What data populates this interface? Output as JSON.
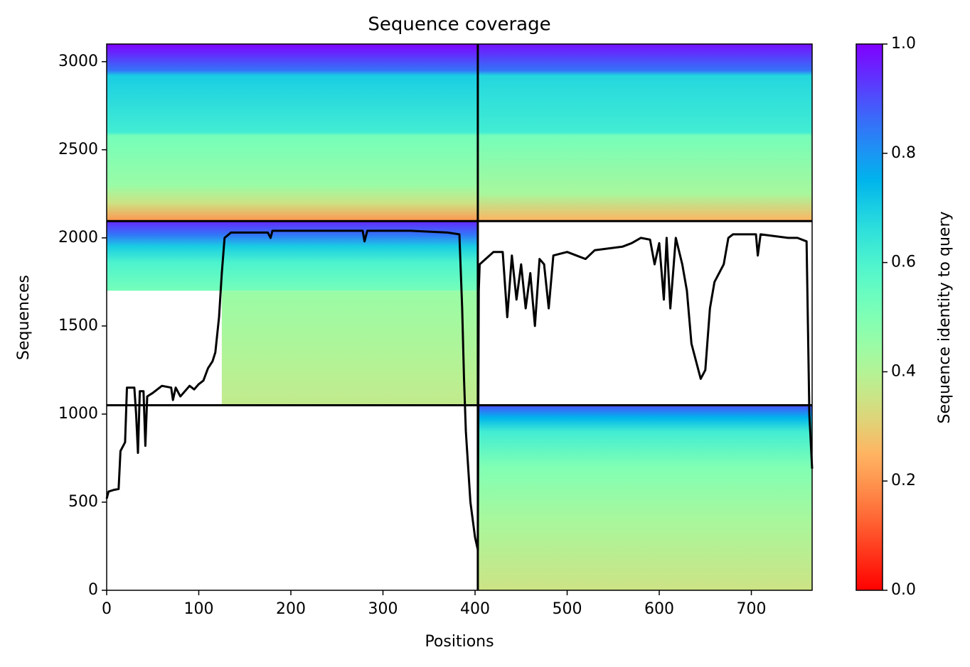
{
  "chart_data": {
    "type": "coverage",
    "title": "Sequence coverage",
    "xlabel": "Positions",
    "ylabel": "Sequences",
    "colorbar_label": "Sequence identity to query",
    "xlim": [
      0,
      766
    ],
    "ylim": [
      0,
      3100
    ],
    "xticks": [
      0,
      100,
      200,
      300,
      400,
      500,
      600,
      700
    ],
    "yticks": [
      0,
      500,
      1000,
      1500,
      2000,
      2500,
      3000
    ],
    "colorbar_lim": [
      0,
      1
    ],
    "colorbar_ticks": [
      {
        "value": 0,
        "label": "0.0"
      },
      {
        "value": 0.2,
        "label": "0.2"
      },
      {
        "value": 0.4,
        "label": "0.4"
      },
      {
        "value": 0.6,
        "label": "0.6"
      },
      {
        "value": 0.8,
        "label": "0.8"
      },
      {
        "value": 1,
        "label": "1.0"
      }
    ],
    "colormap": "rainbow_r",
    "x_breaks": [
      403
    ],
    "y_breaks": [
      1050,
      2095
    ],
    "blocks": [
      {
        "x": [
          0,
          403
        ],
        "y": [
          2095,
          3100
        ],
        "stops": [
          [
            3100,
            1.0
          ],
          [
            2950,
            0.85
          ],
          [
            2920,
            0.7
          ],
          [
            2600,
            0.62
          ],
          [
            2580,
            0.52
          ],
          [
            2300,
            0.45
          ],
          [
            2200,
            0.35
          ],
          [
            2095,
            0.2
          ]
        ]
      },
      {
        "x": [
          403,
          766
        ],
        "y": [
          2095,
          3100
        ],
        "stops": [
          [
            3100,
            0.98
          ],
          [
            2950,
            0.85
          ],
          [
            2920,
            0.68
          ],
          [
            2600,
            0.62
          ],
          [
            2580,
            0.52
          ],
          [
            2250,
            0.42
          ],
          [
            2095,
            0.25
          ]
        ]
      },
      {
        "x": [
          0,
          403
        ],
        "y": [
          1700,
          2095
        ],
        "stops": [
          [
            2095,
            0.95
          ],
          [
            2020,
            0.85
          ],
          [
            1950,
            0.7
          ],
          [
            1860,
            0.6
          ],
          [
            1700,
            0.52
          ]
        ]
      },
      {
        "x": [
          125,
          403
        ],
        "y": [
          1050,
          1700
        ],
        "stops": [
          [
            1700,
            0.45
          ],
          [
            1300,
            0.4
          ],
          [
            1050,
            0.37
          ]
        ]
      },
      {
        "x": [
          403,
          766
        ],
        "y": [
          0,
          1050
        ],
        "stops": [
          [
            1050,
            0.9
          ],
          [
            980,
            0.75
          ],
          [
            900,
            0.62
          ],
          [
            700,
            0.5
          ],
          [
            400,
            0.42
          ],
          [
            0,
            0.35
          ]
        ]
      }
    ],
    "coverage": {
      "color": "#000000",
      "x": [
        0,
        2,
        8,
        13,
        15,
        20,
        22,
        30,
        32,
        34,
        36,
        40,
        42,
        44,
        50,
        60,
        70,
        72,
        75,
        80,
        90,
        95,
        100,
        105,
        110,
        115,
        118,
        122,
        125,
        128,
        135,
        150,
        175,
        178,
        180,
        250,
        278,
        280,
        283,
        330,
        370,
        383,
        386,
        388,
        390,
        395,
        400,
        403,
        404,
        405,
        420,
        430,
        435,
        440,
        445,
        450,
        455,
        460,
        465,
        470,
        475,
        480,
        485,
        500,
        510,
        520,
        530,
        560,
        570,
        580,
        590,
        595,
        600,
        605,
        608,
        612,
        618,
        625,
        630,
        635,
        640,
        645,
        650,
        655,
        660,
        665,
        670,
        675,
        680,
        700,
        705,
        707,
        710,
        740,
        750,
        760,
        763,
        766
      ],
      "values": [
        520,
        560,
        570,
        575,
        790,
        840,
        1150,
        1150,
        1000,
        780,
        1130,
        1130,
        820,
        1100,
        1120,
        1160,
        1150,
        1080,
        1150,
        1100,
        1160,
        1140,
        1170,
        1190,
        1260,
        1300,
        1350,
        1550,
        1800,
        2000,
        2030,
        2030,
        2030,
        2000,
        2040,
        2040,
        2040,
        1980,
        2040,
        2040,
        2030,
        2020,
        1600,
        1200,
        900,
        500,
        300,
        230,
        1700,
        1850,
        1920,
        1920,
        1550,
        1900,
        1650,
        1850,
        1600,
        1800,
        1500,
        1880,
        1850,
        1600,
        1900,
        1920,
        1900,
        1880,
        1930,
        1950,
        1970,
        2000,
        1990,
        1850,
        1970,
        1650,
        2000,
        1600,
        2000,
        1850,
        1700,
        1400,
        1300,
        1200,
        1250,
        1600,
        1750,
        1800,
        1850,
        2000,
        2020,
        2020,
        2020,
        1900,
        2020,
        2000,
        2000,
        1980,
        1000,
        690
      ]
    }
  }
}
